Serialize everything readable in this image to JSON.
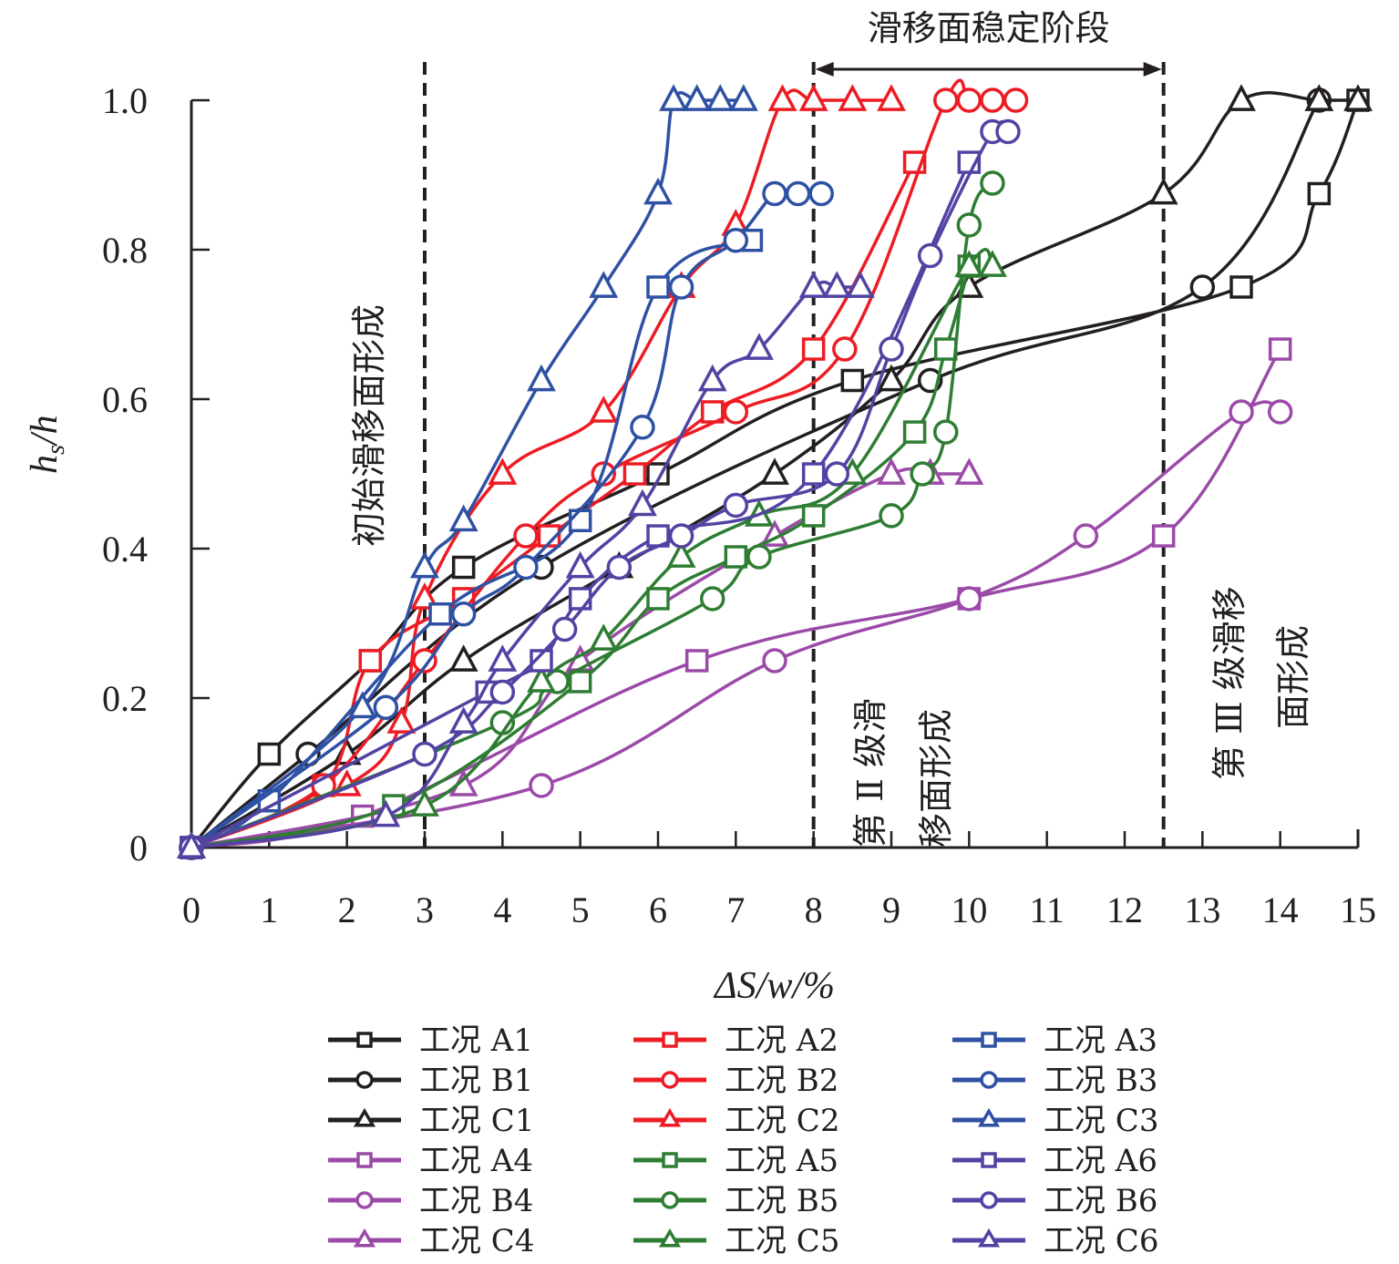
{
  "chart_data": {
    "type": "line",
    "xlabel": "ΔS/w/%",
    "ylabel_main": "h",
    "ylabel_sub": "s",
    "ylabel_tail": "/h",
    "xlim": [
      0,
      15
    ],
    "ylim": [
      0,
      1.0
    ],
    "x_ticks": [
      "0",
      "1",
      "2",
      "3",
      "4",
      "5",
      "6",
      "7",
      "8",
      "9",
      "10",
      "11",
      "12",
      "13",
      "14",
      "15"
    ],
    "y_ticks": [
      "0",
      "0.2",
      "0.4",
      "0.6",
      "0.8",
      "1.0"
    ],
    "y_tick_values": [
      0,
      0.2,
      0.4,
      0.6,
      0.8,
      1.0
    ],
    "grid": false,
    "legend_placement": "bottom",
    "vlines": [
      3,
      8,
      12.5
    ],
    "range_arrow": {
      "from": 8,
      "to": 12.5,
      "label": "滑移面稳定阶段"
    },
    "annotations": [
      {
        "id": "initial",
        "lines": [
          "初始滑移面形成"
        ]
      },
      {
        "id": "second",
        "lines": [
          "第 Ⅱ 级滑",
          "移面形成"
        ]
      },
      {
        "id": "third",
        "lines": [
          "第 Ⅲ 级滑移",
          "面形成"
        ]
      }
    ],
    "series": [
      {
        "name": "工况 A1",
        "color": "#231f20",
        "marker": "square",
        "x": [
          0,
          1,
          2.3,
          3.5,
          6,
          8.5,
          13.5,
          14.5,
          15
        ],
        "y": [
          0,
          0.125,
          0.25,
          0.375,
          0.5,
          0.625,
          0.75,
          0.875,
          1.0
        ]
      },
      {
        "name": "工况 B1",
        "color": "#231f20",
        "marker": "circle",
        "x": [
          0,
          1.5,
          4.5,
          9.5,
          13,
          14.5
        ],
        "y": [
          0,
          0.125,
          0.375,
          0.625,
          0.75,
          1.0
        ]
      },
      {
        "name": "工况 C1",
        "color": "#231f20",
        "marker": "triangle",
        "x": [
          0,
          2,
          3.5,
          5.5,
          7.5,
          9,
          10,
          12.5,
          13.5,
          14.5,
          15
        ],
        "y": [
          0,
          0.125,
          0.25,
          0.375,
          0.5,
          0.625,
          0.75,
          0.875,
          1.0,
          1.0,
          1.0
        ]
      },
      {
        "name": "工况 A2",
        "color": "#ed1c24",
        "marker": "square",
        "x": [
          0,
          1.7,
          2.3,
          3.5,
          4.6,
          5.7,
          6.7,
          8,
          9.3
        ],
        "y": [
          0,
          0.083,
          0.25,
          0.333,
          0.417,
          0.5,
          0.583,
          0.667,
          0.917
        ]
      },
      {
        "name": "工况 B2",
        "color": "#ed1c24",
        "marker": "circle",
        "x": [
          0,
          1.7,
          3,
          4.3,
          5.3,
          7,
          8.4,
          9.7,
          10,
          10.3,
          10.6
        ],
        "y": [
          0,
          0.083,
          0.25,
          0.417,
          0.5,
          0.583,
          0.667,
          1.0,
          1.0,
          1.0,
          1.0
        ]
      },
      {
        "name": "工况 C2",
        "color": "#ed1c24",
        "marker": "triangle",
        "x": [
          0,
          2,
          2.7,
          3,
          4,
          5.3,
          6.3,
          7,
          7.6,
          8,
          8.5,
          9
        ],
        "y": [
          0,
          0.083,
          0.167,
          0.333,
          0.5,
          0.583,
          0.75,
          0.833,
          1.0,
          1.0,
          1.0,
          1.0
        ]
      },
      {
        "name": "工况 A3",
        "color": "#2e51a3",
        "marker": "square",
        "x": [
          0,
          1,
          3.2,
          5,
          6,
          7.2
        ],
        "y": [
          0,
          0.0625,
          0.3125,
          0.4375,
          0.75,
          0.8125
        ]
      },
      {
        "name": "工况 B3",
        "color": "#2e51a3",
        "marker": "circle",
        "x": [
          0,
          2.5,
          3.5,
          4.3,
          5.8,
          6.3,
          7,
          7.5,
          7.8,
          8.1
        ],
        "y": [
          0,
          0.1875,
          0.3125,
          0.375,
          0.5625,
          0.75,
          0.8125,
          0.875,
          0.875,
          0.875
        ]
      },
      {
        "name": "工况 C3",
        "color": "#2e51a3",
        "marker": "triangle",
        "x": [
          0,
          2.2,
          3,
          3.5,
          4.5,
          5.3,
          6,
          6.2,
          6.5,
          6.8,
          7.1
        ],
        "y": [
          0,
          0.1875,
          0.375,
          0.4375,
          0.625,
          0.75,
          0.875,
          1.0,
          1.0,
          1.0,
          1.0
        ]
      },
      {
        "name": "工况 A4",
        "color": "#9b4aa8",
        "marker": "square",
        "x": [
          0,
          2.2,
          6.5,
          10,
          12.5,
          14
        ],
        "y": [
          0,
          0.042,
          0.25,
          0.333,
          0.417,
          0.667
        ]
      },
      {
        "name": "工况 B4",
        "color": "#9b4aa8",
        "marker": "circle",
        "x": [
          0,
          4.5,
          7.5,
          10,
          11.5,
          13.5,
          14
        ],
        "y": [
          0,
          0.083,
          0.25,
          0.333,
          0.417,
          0.583,
          0.583
        ]
      },
      {
        "name": "工况 C4",
        "color": "#9b4aa8",
        "marker": "triangle",
        "x": [
          0,
          3.5,
          5,
          7.5,
          9,
          9.5,
          10
        ],
        "y": [
          0,
          0.083,
          0.25,
          0.417,
          0.5,
          0.5,
          0.5
        ]
      },
      {
        "name": "工况 A5",
        "color": "#2e7d32",
        "marker": "square",
        "x": [
          0,
          2.6,
          5,
          6,
          7,
          8,
          9.3,
          9.7,
          10
        ],
        "y": [
          0,
          0.056,
          0.222,
          0.333,
          0.389,
          0.444,
          0.556,
          0.667,
          0.778
        ]
      },
      {
        "name": "工况 B5",
        "color": "#2e7d32",
        "marker": "circle",
        "x": [
          0,
          4,
          4.7,
          6.7,
          7.3,
          9,
          9.4,
          9.7,
          10,
          10.3
        ],
        "y": [
          0,
          0.167,
          0.222,
          0.333,
          0.389,
          0.444,
          0.5,
          0.556,
          0.833,
          0.889
        ]
      },
      {
        "name": "工况 C5",
        "color": "#2e7d32",
        "marker": "triangle",
        "x": [
          0,
          3,
          4.5,
          5.3,
          6.3,
          7.3,
          8.5,
          10,
          10.3
        ],
        "y": [
          0,
          0.056,
          0.222,
          0.278,
          0.389,
          0.444,
          0.5,
          0.778,
          0.778
        ]
      },
      {
        "name": "工况 A6",
        "color": "#5243a3",
        "marker": "square",
        "x": [
          0,
          3.8,
          4.5,
          5,
          6,
          8,
          10
        ],
        "y": [
          0,
          0.208,
          0.25,
          0.333,
          0.417,
          0.5,
          0.917
        ]
      },
      {
        "name": "工况 B6",
        "color": "#5243a3",
        "marker": "circle",
        "x": [
          0,
          3,
          4,
          4.8,
          5.5,
          6.3,
          7,
          8.3,
          9,
          9.5,
          10.3,
          10.5
        ],
        "y": [
          0,
          0.125,
          0.208,
          0.292,
          0.375,
          0.417,
          0.458,
          0.5,
          0.667,
          0.792,
          0.958,
          0.958
        ]
      },
      {
        "name": "工况 C6",
        "color": "#5243a3",
        "marker": "triangle",
        "x": [
          0,
          2.5,
          3.5,
          4,
          5,
          5.8,
          6.7,
          7.3,
          8,
          8.3,
          8.6
        ],
        "y": [
          0,
          0.042,
          0.167,
          0.25,
          0.375,
          0.458,
          0.625,
          0.667,
          0.75,
          0.75,
          0.75
        ]
      }
    ]
  }
}
